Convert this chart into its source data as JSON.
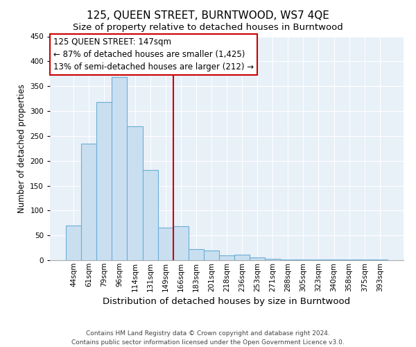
{
  "title": "125, QUEEN STREET, BURNTWOOD, WS7 4QE",
  "subtitle": "Size of property relative to detached houses in Burntwood",
  "xlabel": "Distribution of detached houses by size in Burntwood",
  "ylabel": "Number of detached properties",
  "categories": [
    "44sqm",
    "61sqm",
    "79sqm",
    "96sqm",
    "114sqm",
    "131sqm",
    "149sqm",
    "166sqm",
    "183sqm",
    "201sqm",
    "218sqm",
    "236sqm",
    "253sqm",
    "271sqm",
    "288sqm",
    "305sqm",
    "323sqm",
    "340sqm",
    "358sqm",
    "375sqm",
    "393sqm"
  ],
  "values": [
    70,
    235,
    318,
    368,
    270,
    181,
    65,
    68,
    22,
    19,
    10,
    11,
    5,
    3,
    2,
    2,
    1,
    1,
    1,
    1,
    2
  ],
  "bar_color": "#c9dff0",
  "bar_edge_color": "#6aaed6",
  "vline_x_pos": 6.5,
  "vline_color": "#cc0000",
  "annotation_title": "125 QUEEN STREET: 147sqm",
  "annotation_line1": "← 87% of detached houses are smaller (1,425)",
  "annotation_line2": "13% of semi-detached houses are larger (212) →",
  "annotation_box_edge": "#cc0000",
  "plot_bg_color": "#e8f0f8",
  "ylim": [
    0,
    450
  ],
  "yticks": [
    0,
    50,
    100,
    150,
    200,
    250,
    300,
    350,
    400,
    450
  ],
  "footnote1": "Contains HM Land Registry data © Crown copyright and database right 2024.",
  "footnote2": "Contains public sector information licensed under the Open Government Licence v3.0.",
  "title_fontsize": 11,
  "subtitle_fontsize": 9.5,
  "xlabel_fontsize": 9.5,
  "ylabel_fontsize": 8.5,
  "tick_fontsize": 7.5,
  "annotation_fontsize": 8.5,
  "footnote_fontsize": 6.5
}
